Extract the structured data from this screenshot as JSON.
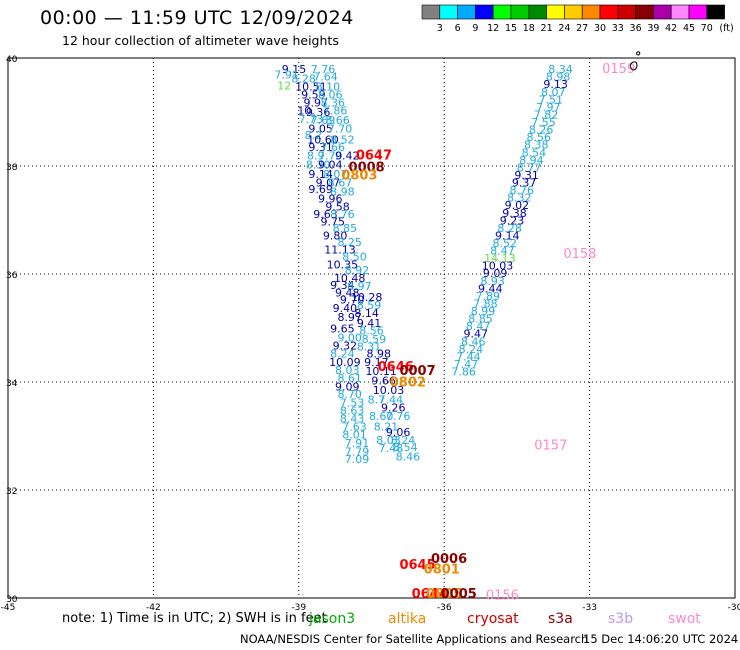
{
  "header": {
    "title": "00:00 — 11:59 UTC 12/09/2024",
    "subtitle": "12 hour collection of altimeter wave heights"
  },
  "legend": {
    "unit": "(ft)",
    "colors": [
      "#808080",
      "#00ffff",
      "#00aaff",
      "#0000ff",
      "#00ff00",
      "#00cc00",
      "#008800",
      "#ffff00",
      "#ffcc00",
      "#ff8800",
      "#ff0000",
      "#cc0000",
      "#880000",
      "#aa00aa",
      "#ff88ff",
      "#ff00ff",
      "#000000"
    ],
    "labels": [
      "3",
      "6",
      "9",
      "12",
      "15",
      "18",
      "21",
      "24",
      "27",
      "30",
      "33",
      "36",
      "39",
      "42",
      "45",
      "70"
    ]
  },
  "map": {
    "lon_ticks": [
      "-45",
      "-42",
      "-39",
      "-36",
      "-33",
      "-30"
    ],
    "lat_ticks": [
      "40",
      "38",
      "36",
      "34",
      "32",
      "30"
    ],
    "lon_range": [
      -45,
      -30
    ],
    "lat_range": [
      30,
      40
    ],
    "grid": "dotted"
  },
  "track_labels": [
    {
      "lon": -36.55,
      "lat": 30.54,
      "text": "0645",
      "color": "#ff0000",
      "weight": "bold"
    },
    {
      "lon": -35.9,
      "lat": 30.65,
      "text": "0006",
      "color": "#880000",
      "weight": "bold"
    },
    {
      "lon": -36.05,
      "lat": 30.45,
      "text": "0801",
      "color": "#ee8800",
      "weight": "bold"
    },
    {
      "lon": -36.3,
      "lat": 30.0,
      "text": "0644",
      "color": "#ff0000",
      "weight": "bold"
    },
    {
      "lon": -36.0,
      "lat": 30.0,
      "text": "0805",
      "color": "#ee8800",
      "weight": "bold"
    },
    {
      "lon": -35.7,
      "lat": 30.0,
      "text": "0005",
      "color": "#880000",
      "weight": "bold"
    },
    {
      "lon": -34.8,
      "lat": 29.97,
      "text": "0156",
      "color": "#ff88cc",
      "weight": "normal"
    },
    {
      "lon": -37.45,
      "lat": 38.12,
      "text": "0647",
      "color": "#ff0000",
      "weight": "bold"
    },
    {
      "lon": -37.6,
      "lat": 37.9,
      "text": "0008",
      "color": "#880000",
      "weight": "bold"
    },
    {
      "lon": -37.75,
      "lat": 37.75,
      "text": "0803",
      "color": "#ee8800",
      "weight": "bold"
    },
    {
      "lon": -37.0,
      "lat": 34.2,
      "text": "0646",
      "color": "#ff0000",
      "weight": "bold"
    },
    {
      "lon": -36.55,
      "lat": 34.13,
      "text": "0007",
      "color": "#880000",
      "weight": "bold"
    },
    {
      "lon": -36.75,
      "lat": 33.92,
      "text": "0802",
      "color": "#ee8800",
      "weight": "bold"
    },
    {
      "lon": -33.8,
      "lat": 32.75,
      "text": "0157",
      "color": "#ff88cc",
      "weight": "normal"
    },
    {
      "lon": -33.2,
      "lat": 36.3,
      "text": "0158",
      "color": "#ff88cc",
      "weight": "normal"
    },
    {
      "lon": -32.4,
      "lat": 39.72,
      "text": "0159",
      "color": "#ff88cc",
      "weight": "normal"
    }
  ],
  "swot_track": [
    {
      "lon": -33.6,
      "lat": 39.72,
      "text": "8.34"
    },
    {
      "lon": -33.65,
      "lat": 39.58,
      "text": "8.98"
    },
    {
      "lon": -33.7,
      "lat": 39.44,
      "text": "9.13",
      "color": "#0000aa"
    },
    {
      "lon": -33.75,
      "lat": 39.3,
      "text": "8.07"
    },
    {
      "lon": -33.8,
      "lat": 39.16,
      "text": "7.51"
    },
    {
      "lon": -33.85,
      "lat": 39.02,
      "text": "7.97"
    },
    {
      "lon": -33.9,
      "lat": 38.88,
      "text": "7.82"
    },
    {
      "lon": -33.95,
      "lat": 38.74,
      "text": "7.55"
    },
    {
      "lon": -34.0,
      "lat": 38.6,
      "text": "8.26"
    },
    {
      "lon": -34.05,
      "lat": 38.46,
      "text": "8.56"
    },
    {
      "lon": -34.1,
      "lat": 38.32,
      "text": "8.38"
    },
    {
      "lon": -34.15,
      "lat": 38.18,
      "text": "8.54"
    },
    {
      "lon": -34.2,
      "lat": 38.04,
      "text": "8.94"
    },
    {
      "lon": -34.25,
      "lat": 37.9,
      "text": "8.77"
    },
    {
      "lon": -34.3,
      "lat": 37.76,
      "text": "9.31",
      "color": "#0000aa"
    },
    {
      "lon": -34.35,
      "lat": 37.62,
      "text": "9.37",
      "color": "#0000aa"
    },
    {
      "lon": -34.4,
      "lat": 37.48,
      "text": "8.76"
    },
    {
      "lon": -34.45,
      "lat": 37.34,
      "text": "8.32"
    },
    {
      "lon": -34.5,
      "lat": 37.2,
      "text": "9.02",
      "color": "#0000aa"
    },
    {
      "lon": -34.55,
      "lat": 37.06,
      "text": "9.38",
      "color": "#0000aa"
    },
    {
      "lon": -34.6,
      "lat": 36.92,
      "text": "9.23",
      "color": "#0000aa"
    },
    {
      "lon": -34.65,
      "lat": 36.78,
      "text": "8.28"
    },
    {
      "lon": -34.7,
      "lat": 36.64,
      "text": "9.14",
      "color": "#0000aa"
    },
    {
      "lon": -34.75,
      "lat": 36.5,
      "text": "8.52"
    },
    {
      "lon": -34.8,
      "lat": 36.36,
      "text": "8.47"
    },
    {
      "lon": -34.85,
      "lat": 36.22,
      "text": "14.13",
      "color": "#66dd44"
    },
    {
      "lon": -34.9,
      "lat": 36.08,
      "text": "10.03",
      "color": "#0000aa"
    },
    {
      "lon": -34.95,
      "lat": 35.94,
      "text": "9.09",
      "color": "#0000aa"
    },
    {
      "lon": -35.0,
      "lat": 35.8,
      "text": "8.93"
    },
    {
      "lon": -35.05,
      "lat": 35.66,
      "text": "9.44",
      "color": "#0000aa"
    },
    {
      "lon": -35.1,
      "lat": 35.52,
      "text": "7.89"
    },
    {
      "lon": -35.15,
      "lat": 35.38,
      "text": "7.88"
    },
    {
      "lon": -35.2,
      "lat": 35.24,
      "text": "8.99"
    },
    {
      "lon": -35.25,
      "lat": 35.1,
      "text": "8.85"
    },
    {
      "lon": -35.3,
      "lat": 34.96,
      "text": "8.47"
    },
    {
      "lon": -35.35,
      "lat": 34.82,
      "text": "9.47",
      "color": "#0000aa"
    },
    {
      "lon": -35.4,
      "lat": 34.68,
      "text": "8.46"
    },
    {
      "lon": -35.45,
      "lat": 34.54,
      "text": "8.24"
    },
    {
      "lon": -35.5,
      "lat": 34.4,
      "text": "7.44"
    },
    {
      "lon": -35.55,
      "lat": 34.26,
      "text": "7.47"
    },
    {
      "lon": -35.6,
      "lat": 34.12,
      "text": "7.86"
    }
  ],
  "main_track": [
    {
      "lon": -39.1,
      "lat": 39.72,
      "text": "9.15",
      "color": "#0000aa"
    },
    {
      "lon": -39.25,
      "lat": 39.62,
      "text": "7.91"
    },
    {
      "lon": -38.9,
      "lat": 39.55,
      "text": "8.28"
    },
    {
      "lon": -38.5,
      "lat": 39.72,
      "text": "7.76"
    },
    {
      "lon": -38.45,
      "lat": 39.58,
      "text": "7.64"
    },
    {
      "lon": -39.3,
      "lat": 39.42,
      "text": "12",
      "color": "#66dd44"
    },
    {
      "lon": -38.75,
      "lat": 39.4,
      "text": "10.51",
      "color": "#0000aa"
    },
    {
      "lon": -38.4,
      "lat": 39.4,
      "text": "8.10"
    },
    {
      "lon": -38.7,
      "lat": 39.25,
      "text": "9.59",
      "color": "#0000aa"
    },
    {
      "lon": -38.35,
      "lat": 39.25,
      "text": "8.06"
    },
    {
      "lon": -38.65,
      "lat": 39.1,
      "text": "9.97",
      "color": "#0000aa"
    },
    {
      "lon": -38.3,
      "lat": 39.1,
      "text": "8.36"
    },
    {
      "lon": -38.85,
      "lat": 38.95,
      "text": "10.",
      "color": "#0000aa"
    },
    {
      "lon": -38.6,
      "lat": 38.93,
      "text": "9.36",
      "color": "#0000aa"
    },
    {
      "lon": -38.25,
      "lat": 38.95,
      "text": "7.86"
    },
    {
      "lon": -38.75,
      "lat": 38.8,
      "text": "7.73"
    },
    {
      "lon": -38.5,
      "lat": 38.78,
      "text": "7.69"
    },
    {
      "lon": -38.2,
      "lat": 38.78,
      "text": "8.66"
    },
    {
      "lon": -38.55,
      "lat": 38.62,
      "text": "9.05",
      "color": "#0000aa"
    },
    {
      "lon": -38.15,
      "lat": 38.62,
      "text": "7.70"
    },
    {
      "lon": -38.7,
      "lat": 38.5,
      "text": "8.2"
    },
    {
      "lon": -38.5,
      "lat": 38.42,
      "text": "10.60",
      "color": "#0000aa"
    },
    {
      "lon": -38.1,
      "lat": 38.42,
      "text": "8.52"
    },
    {
      "lon": -38.55,
      "lat": 38.28,
      "text": "9.31",
      "color": "#0000aa"
    },
    {
      "lon": -38.3,
      "lat": 38.28,
      "text": "7.66"
    },
    {
      "lon": -38.65,
      "lat": 38.12,
      "text": "8.9"
    },
    {
      "lon": -38.35,
      "lat": 38.12,
      "text": "7.70"
    },
    {
      "lon": -38.0,
      "lat": 38.12,
      "text": "9.42",
      "color": "#0000aa"
    },
    {
      "lon": -38.6,
      "lat": 37.95,
      "text": "8.30"
    },
    {
      "lon": -38.35,
      "lat": 37.95,
      "text": "9.04",
      "color": "#0000aa"
    },
    {
      "lon": -38.55,
      "lat": 37.78,
      "text": "9.14",
      "color": "#0000aa"
    },
    {
      "lon": -38.25,
      "lat": 37.78,
      "text": "8.07"
    },
    {
      "lon": -38.4,
      "lat": 37.62,
      "text": "9.07",
      "color": "#0000aa"
    },
    {
      "lon": -38.15,
      "lat": 37.62,
      "text": "8.67"
    },
    {
      "lon": -38.55,
      "lat": 37.5,
      "text": "9.69",
      "color": "#0000aa"
    },
    {
      "lon": -38.1,
      "lat": 37.45,
      "text": "8.98"
    },
    {
      "lon": -38.35,
      "lat": 37.32,
      "text": "9.96",
      "color": "#0000aa"
    },
    {
      "lon": -38.2,
      "lat": 37.18,
      "text": "9.58",
      "color": "#0000aa"
    },
    {
      "lon": -38.45,
      "lat": 37.04,
      "text": "9.63",
      "color": "#0000aa"
    },
    {
      "lon": -38.1,
      "lat": 37.04,
      "text": "8.76"
    },
    {
      "lon": -38.3,
      "lat": 36.9,
      "text": "9.75",
      "color": "#0000aa"
    },
    {
      "lon": -38.05,
      "lat": 36.78,
      "text": "8.85"
    },
    {
      "lon": -38.25,
      "lat": 36.64,
      "text": "9.80",
      "color": "#0000aa"
    },
    {
      "lon": -37.95,
      "lat": 36.52,
      "text": "8.25"
    },
    {
      "lon": -38.15,
      "lat": 36.38,
      "text": "11.13",
      "color": "#0000aa"
    },
    {
      "lon": -37.85,
      "lat": 36.25,
      "text": "8.50"
    },
    {
      "lon": -38.1,
      "lat": 36.1,
      "text": "10.35",
      "color": "#0000aa"
    },
    {
      "lon": -37.8,
      "lat": 36.0,
      "text": "8.92"
    },
    {
      "lon": -37.95,
      "lat": 35.85,
      "text": "10.48",
      "color": "#0000aa"
    },
    {
      "lon": -38.1,
      "lat": 35.72,
      "text": "9.34",
      "color": "#0000aa"
    },
    {
      "lon": -37.75,
      "lat": 35.7,
      "text": "8.97"
    },
    {
      "lon": -38.0,
      "lat": 35.58,
      "text": "9.48",
      "color": "#0000aa"
    },
    {
      "lon": -37.6,
      "lat": 35.5,
      "text": "10.28",
      "color": "#0000aa"
    },
    {
      "lon": -37.9,
      "lat": 35.45,
      "text": "9.70",
      "color": "#0000aa"
    },
    {
      "lon": -37.55,
      "lat": 35.35,
      "text": "8.59"
    },
    {
      "lon": -38.05,
      "lat": 35.3,
      "text": "9.40",
      "color": "#0000aa"
    },
    {
      "lon": -37.6,
      "lat": 35.2,
      "text": "8.14",
      "color": "#0000aa"
    },
    {
      "lon": -37.95,
      "lat": 35.13,
      "text": "8.97",
      "color": "#0000aa"
    },
    {
      "lon": -37.55,
      "lat": 35.02,
      "text": "9.41",
      "color": "#0000aa"
    },
    {
      "lon": -38.1,
      "lat": 34.92,
      "text": "9.65",
      "color": "#0000aa"
    },
    {
      "lon": -37.5,
      "lat": 34.88,
      "text": "8.56"
    },
    {
      "lon": -37.95,
      "lat": 34.75,
      "text": "9.00"
    },
    {
      "lon": -37.45,
      "lat": 34.72,
      "text": "8.59"
    },
    {
      "lon": -38.05,
      "lat": 34.6,
      "text": "9.32",
      "color": "#0000aa"
    },
    {
      "lon": -37.55,
      "lat": 34.58,
      "text": "8.31"
    },
    {
      "lon": -38.1,
      "lat": 34.45,
      "text": "8.24"
    },
    {
      "lon": -37.35,
      "lat": 34.45,
      "text": "8.98",
      "color": "#0000aa"
    },
    {
      "lon": -38.05,
      "lat": 34.3,
      "text": "10.09",
      "color": "#0000aa"
    },
    {
      "lon": -37.4,
      "lat": 34.3,
      "text": "9.17",
      "color": "#0000aa"
    },
    {
      "lon": -38.0,
      "lat": 34.15,
      "text": "8.03"
    },
    {
      "lon": -37.3,
      "lat": 34.13,
      "text": "10.11",
      "color": "#0000aa"
    },
    {
      "lon": -37.95,
      "lat": 34.0,
      "text": "8.61"
    },
    {
      "lon": -37.25,
      "lat": 33.95,
      "text": "9.66",
      "color": "#0000aa"
    },
    {
      "lon": -38.0,
      "lat": 33.84,
      "text": "9.09",
      "color": "#0000aa"
    },
    {
      "lon": -37.15,
      "lat": 33.78,
      "text": "10.03",
      "color": "#0000aa"
    },
    {
      "lon": -37.95,
      "lat": 33.7,
      "text": "8.70"
    },
    {
      "lon": -37.4,
      "lat": 33.6,
      "text": "8.7"
    },
    {
      "lon": -37.1,
      "lat": 33.6,
      "text": "7.44"
    },
    {
      "lon": -37.9,
      "lat": 33.55,
      "text": "7.53"
    },
    {
      "lon": -37.05,
      "lat": 33.45,
      "text": "9.26",
      "color": "#0000aa"
    },
    {
      "lon": -37.9,
      "lat": 33.4,
      "text": "8.63"
    },
    {
      "lon": -37.3,
      "lat": 33.3,
      "text": "8.60"
    },
    {
      "lon": -36.95,
      "lat": 33.3,
      "text": "7.76"
    },
    {
      "lon": -37.9,
      "lat": 33.25,
      "text": "8.43"
    },
    {
      "lon": -37.85,
      "lat": 33.1,
      "text": "7.63"
    },
    {
      "lon": -37.2,
      "lat": 33.1,
      "text": "8.21"
    },
    {
      "lon": -36.95,
      "lat": 33.0,
      "text": "9.06",
      "color": "#0000aa"
    },
    {
      "lon": -37.85,
      "lat": 32.95,
      "text": "8.01"
    },
    {
      "lon": -37.15,
      "lat": 32.85,
      "text": "8.03"
    },
    {
      "lon": -36.85,
      "lat": 32.85,
      "text": "8.24"
    },
    {
      "lon": -37.8,
      "lat": 32.8,
      "text": "7.91"
    },
    {
      "lon": -37.1,
      "lat": 32.7,
      "text": "7.48"
    },
    {
      "lon": -36.8,
      "lat": 32.72,
      "text": "8.54"
    },
    {
      "lon": -37.8,
      "lat": 32.64,
      "text": "7.79"
    },
    {
      "lon": -37.8,
      "lat": 32.5,
      "text": "7.09"
    },
    {
      "lon": -36.75,
      "lat": 32.55,
      "text": "8.46"
    }
  ],
  "island": {
    "lon": -32.1,
    "lat": 39.9
  },
  "footer": {
    "note": "note:  1) Time is in UTC; 2) SWH is in feet",
    "missions": [
      {
        "name": "jason3",
        "color": "#00aa00"
      },
      {
        "name": "altika",
        "color": "#ee8800"
      },
      {
        "name": "cryosat",
        "color": "#cc0000"
      },
      {
        "name": "s3a",
        "color": "#880000"
      },
      {
        "name": "s3b",
        "color": "#bb99ee"
      },
      {
        "name": "swot",
        "color": "#ff88cc"
      }
    ],
    "credit": "NOAA/NESDIS Center for Satellite Applications and Research",
    "timestamp": "15 Dec 14:06:20 UTC 2024"
  }
}
